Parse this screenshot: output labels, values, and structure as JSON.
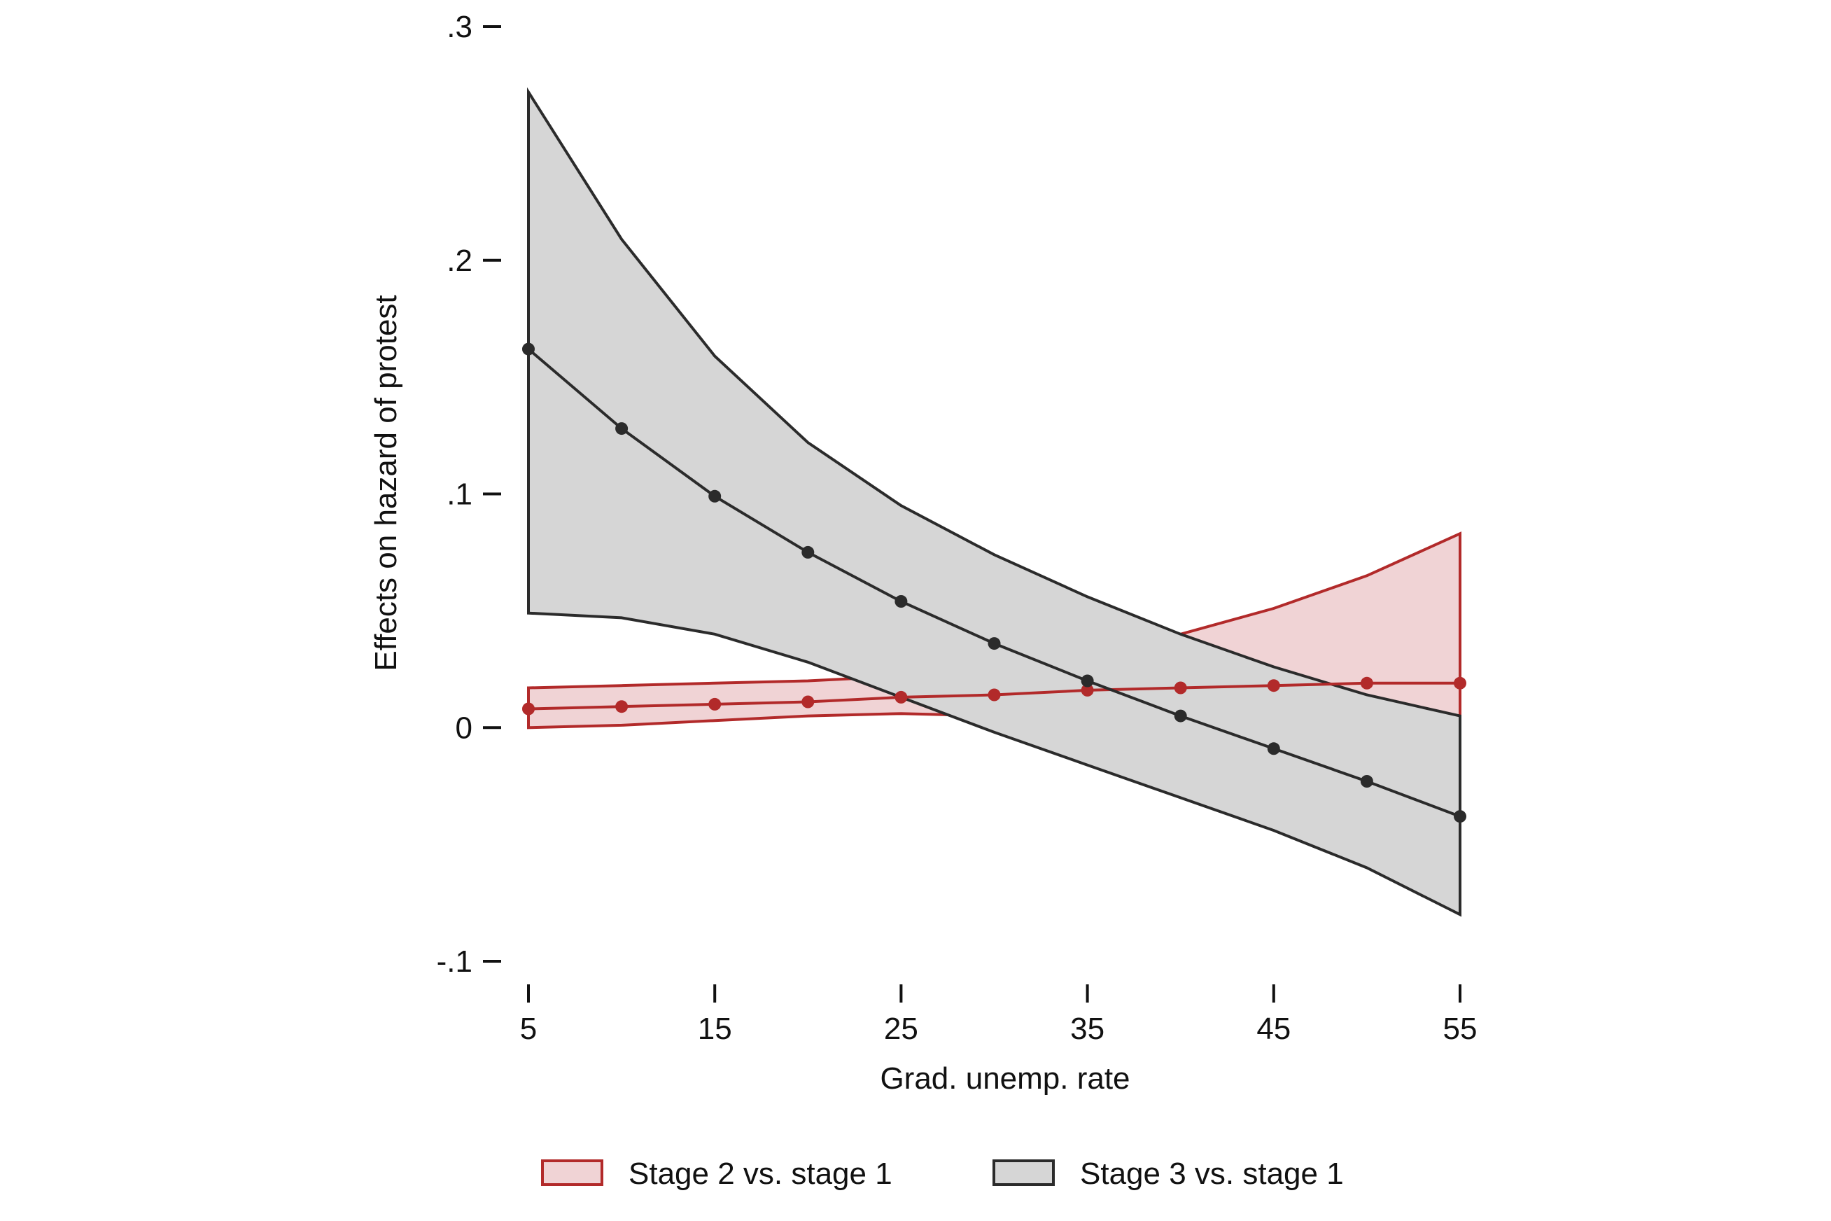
{
  "chart_data": {
    "type": "line",
    "xlabel": "Grad. unemp. rate",
    "ylabel": "Effects on hazard of protest",
    "xlim": [
      5,
      55
    ],
    "ylim": [
      -0.1,
      0.3
    ],
    "x_ticks": [
      {
        "value": 5,
        "label": "5"
      },
      {
        "value": 15,
        "label": "15"
      },
      {
        "value": 25,
        "label": "25"
      },
      {
        "value": 35,
        "label": "35"
      },
      {
        "value": 45,
        "label": "45"
      },
      {
        "value": 55,
        "label": "55"
      }
    ],
    "y_ticks": [
      {
        "value": -0.1,
        "label": "-.1"
      },
      {
        "value": 0,
        "label": "0"
      },
      {
        "value": 0.1,
        "label": ".1"
      },
      {
        "value": 0.2,
        "label": ".2"
      },
      {
        "value": 0.3,
        "label": ".3"
      }
    ],
    "grid": false,
    "legend_position": "bottom",
    "x": [
      5,
      10,
      15,
      20,
      25,
      30,
      35,
      40,
      45,
      50,
      55
    ],
    "series": [
      {
        "name": "Stage 2 vs. stage 1",
        "line_color": "#b22a2a",
        "fill_color": "#f0d3d5",
        "values": [
          0.008,
          0.009,
          0.01,
          0.011,
          0.013,
          0.014,
          0.016,
          0.017,
          0.018,
          0.019,
          0.019
        ],
        "lower": [
          0.0,
          0.001,
          0.003,
          0.005,
          0.006,
          0.005,
          0.01,
          0.01,
          0.01,
          0.008,
          0.005
        ],
        "upper": [
          0.017,
          0.018,
          0.019,
          0.02,
          0.022,
          0.025,
          0.03,
          0.04,
          0.051,
          0.065,
          0.083
        ]
      },
      {
        "name": "Stage 3 vs. stage 1",
        "line_color": "#2b2b2b",
        "fill_color": "#d6d6d6",
        "values": [
          0.162,
          0.128,
          0.099,
          0.075,
          0.054,
          0.036,
          0.02,
          0.005,
          -0.009,
          -0.023,
          -0.038
        ],
        "lower": [
          0.049,
          0.047,
          0.04,
          0.028,
          0.013,
          -0.002,
          -0.016,
          -0.03,
          -0.044,
          -0.06,
          -0.08
        ],
        "upper": [
          0.272,
          0.209,
          0.159,
          0.122,
          0.095,
          0.074,
          0.056,
          0.04,
          0.026,
          0.014,
          0.005
        ]
      }
    ]
  }
}
